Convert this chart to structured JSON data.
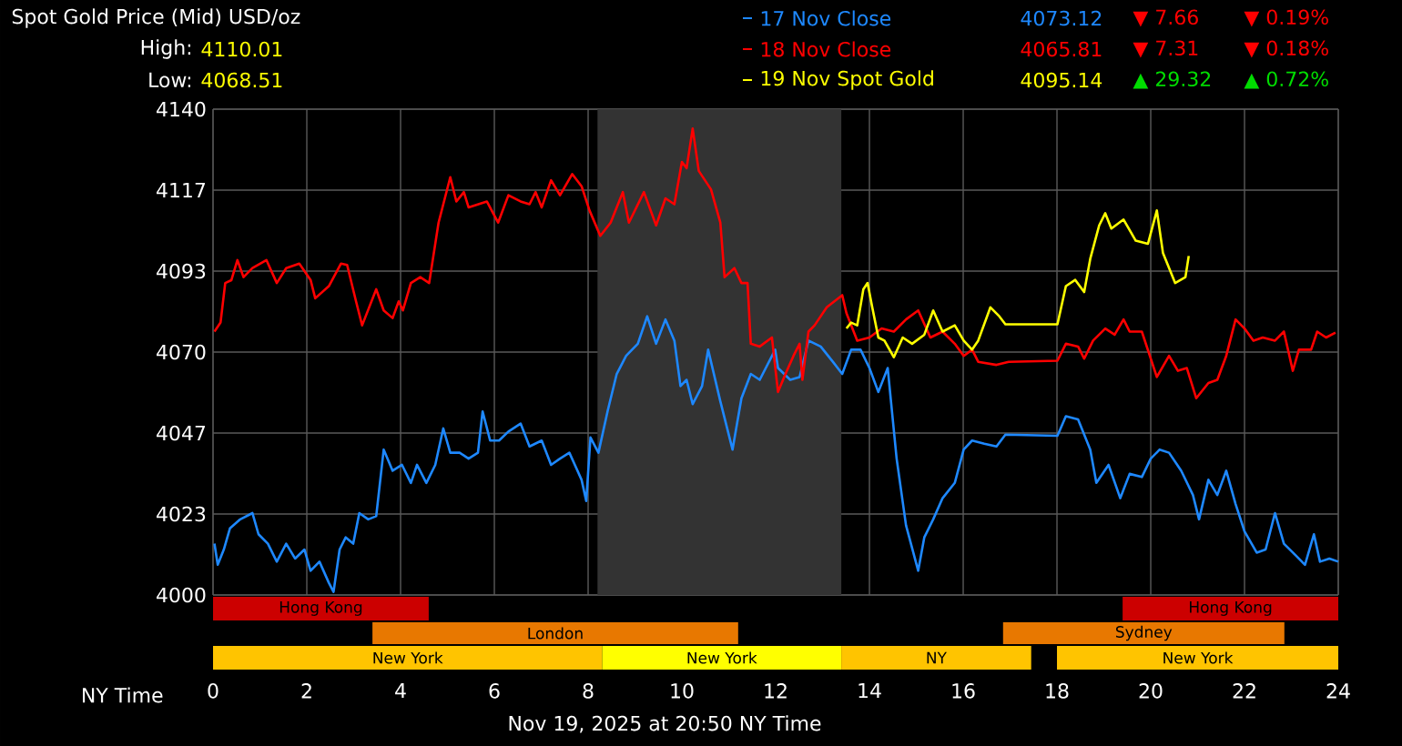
{
  "chart_data": [
    {
      "type": "line",
      "title": "Spot Gold Price (Mid) USD/oz",
      "xlim": [
        0,
        24
      ],
      "ylim": [
        4000,
        4140
      ],
      "xticks": [
        0,
        2,
        4,
        6,
        8,
        10,
        12,
        14,
        16,
        18,
        20,
        22,
        24
      ],
      "yticks": [
        {
          "value": 4000,
          "label": "4000"
        },
        {
          "value": 4023.33,
          "label": "4023"
        },
        {
          "value": 4046.67,
          "label": "4047"
        },
        {
          "value": 4070,
          "label": "4070"
        },
        {
          "value": 4093.33,
          "label": "4093"
        },
        {
          "value": 4116.67,
          "label": "4117"
        },
        {
          "value": 4140,
          "label": "4140"
        }
      ],
      "xlabel": "NY Time",
      "grid": true,
      "legend": "top right",
      "series": [
        {
          "name": "17 Nov Close",
          "color": "#1e88ff",
          "x": [
            0.03,
            0.1,
            0.23,
            0.36,
            0.58,
            0.84,
            0.97,
            1.17,
            1.36,
            1.56,
            1.75,
            1.95,
            2.08,
            2.27,
            2.47,
            2.57,
            2.7,
            2.83,
            2.99,
            3.12,
            3.31,
            3.48,
            3.64,
            3.83,
            4.03,
            4.22,
            4.35,
            4.55,
            4.74,
            4.91,
            5.06,
            5.26,
            5.45,
            5.65,
            5.75,
            5.91,
            6.1,
            6.3,
            6.56,
            6.75,
            7.01,
            7.21,
            7.4,
            7.6,
            7.86,
            7.96,
            8.05,
            8.22,
            8.42,
            8.61,
            8.81,
            9.06,
            9.26,
            9.45,
            9.65,
            9.84,
            9.97,
            10.1,
            10.23,
            10.43,
            10.56,
            10.82,
            11.08,
            11.27,
            11.47,
            11.66,
            11.99,
            12.05,
            12.31,
            12.51,
            12.7,
            12.96,
            13.22,
            13.42,
            13.61,
            13.81,
            14.0,
            14.19,
            14.39,
            14.58,
            14.78,
            15.04,
            15.17,
            15.36,
            15.56,
            15.82,
            16.01,
            16.19,
            16.45,
            16.71,
            16.9,
            18.01,
            18.19,
            18.45,
            18.71,
            18.84,
            19.1,
            19.35,
            19.55,
            19.81,
            20.0,
            20.19,
            20.39,
            20.65,
            20.9,
            21.03,
            21.23,
            21.42,
            21.61,
            21.81,
            22.0,
            22.26,
            22.45,
            22.65,
            22.84,
            23.1,
            23.29,
            23.48,
            23.61,
            23.81,
            24.0
          ],
          "values": [
            4014.8,
            4008.7,
            4013.1,
            4019.2,
            4021.8,
            4023.6,
            4017.5,
            4014.8,
            4009.6,
            4014.8,
            4010.5,
            4013.1,
            4007.0,
            4009.6,
            4003.5,
            4000.9,
            4013.1,
            4016.6,
            4014.8,
            4023.6,
            4021.8,
            4022.7,
            4041.9,
            4035.8,
            4037.5,
            4032.3,
            4037.5,
            4032.3,
            4037.5,
            4048.0,
            4041.0,
            4041.0,
            4039.3,
            4041.0,
            4052.9,
            4044.5,
            4044.5,
            4047.1,
            4049.4,
            4042.8,
            4044.5,
            4037.5,
            4039.3,
            4041.0,
            4033.2,
            4027.1,
            4045.4,
            4041.0,
            4053.2,
            4063.7,
            4068.9,
            4072.4,
            4080.3,
            4072.4,
            4079.4,
            4073.3,
            4060.2,
            4062.0,
            4055.0,
            4060.2,
            4070.7,
            4055.8,
            4041.9,
            4056.7,
            4063.7,
            4062.0,
            4070.7,
            4065.4,
            4062.0,
            4062.8,
            4073.3,
            4071.6,
            4067.2,
            4063.7,
            4070.7,
            4070.7,
            4065.4,
            4058.5,
            4065.4,
            4039.3,
            4020.1,
            4007.0,
            4016.6,
            4021.8,
            4027.9,
            4032.3,
            4041.9,
            4044.5,
            4043.6,
            4042.8,
            4046.2,
            4045.9,
            4051.5,
            4050.6,
            4041.9,
            4032.3,
            4037.5,
            4027.9,
            4034.9,
            4034.0,
            4039.3,
            4041.9,
            4041.0,
            4035.8,
            4028.8,
            4021.8,
            4033.2,
            4028.8,
            4035.8,
            4026.2,
            4018.3,
            4012.2,
            4013.1,
            4023.6,
            4014.8,
            4011.3,
            4008.7,
            4017.5,
            4009.6,
            4010.5,
            4009.6
          ]
        },
        {
          "name": "18 Nov Close",
          "color": "#ff0000",
          "x": [
            0.03,
            0.16,
            0.26,
            0.39,
            0.52,
            0.65,
            0.84,
            1.14,
            1.36,
            1.56,
            1.84,
            2.08,
            2.18,
            2.47,
            2.73,
            2.86,
            3.05,
            3.18,
            3.48,
            3.64,
            3.83,
            3.96,
            4.05,
            4.22,
            4.42,
            4.61,
            4.81,
            5.06,
            5.19,
            5.35,
            5.45,
            5.84,
            6.08,
            6.3,
            6.56,
            6.75,
            6.88,
            7.01,
            7.21,
            7.4,
            7.66,
            7.86,
            8.03,
            8.26,
            8.48,
            8.74,
            8.87,
            9.19,
            9.45,
            9.65,
            9.84,
            10.0,
            10.1,
            10.23,
            10.36,
            10.62,
            10.82,
            10.91,
            11.12,
            11.27,
            11.4,
            11.47,
            11.66,
            11.92,
            12.05,
            12.21,
            12.38,
            12.51,
            12.57,
            12.7,
            12.83,
            13.09,
            13.42,
            13.51,
            13.74,
            14.0,
            14.26,
            14.52,
            14.78,
            15.04,
            15.3,
            15.56,
            15.82,
            16.01,
            16.19,
            16.32,
            16.71,
            16.97,
            18.01,
            18.19,
            18.45,
            18.58,
            18.77,
            19.03,
            19.23,
            19.42,
            19.55,
            19.81,
            20.13,
            20.39,
            20.58,
            20.77,
            20.97,
            21.23,
            21.42,
            21.61,
            21.81,
            22.0,
            22.19,
            22.39,
            22.65,
            22.84,
            23.03,
            23.16,
            23.42,
            23.55,
            23.74,
            23.94
          ],
          "values": [
            4075.9,
            4078.5,
            4089.9,
            4090.7,
            4096.5,
            4091.6,
            4094.2,
            4096.5,
            4089.9,
            4094.2,
            4095.5,
            4090.8,
            4085.5,
            4089.0,
            4095.5,
            4095.1,
            4084.6,
            4077.7,
            4088.1,
            4082.0,
            4079.8,
            4084.6,
            4082.0,
            4089.9,
            4091.6,
            4089.9,
            4107.3,
            4120.4,
            4113.4,
            4116.1,
            4111.7,
            4113.4,
            4107.3,
            4115.2,
            4113.4,
            4112.6,
            4116.1,
            4111.7,
            4119.5,
            4115.2,
            4121.3,
            4117.8,
            4110.8,
            4103.5,
            4107.3,
            4116.1,
            4107.3,
            4116.1,
            4106.5,
            4114.3,
            4112.6,
            4124.8,
            4123.0,
            4134.4,
            4122.2,
            4116.9,
            4107.3,
            4091.6,
            4094.2,
            4089.9,
            4089.9,
            4072.4,
            4071.6,
            4074.2,
            4058.5,
            4063.7,
            4068.9,
            4072.4,
            4062.0,
            4075.9,
            4077.7,
            4082.9,
            4086.4,
            4081.2,
            4073.3,
            4074.2,
            4076.8,
            4075.9,
            4079.4,
            4082.0,
            4074.2,
            4075.9,
            4072.4,
            4068.9,
            4070.7,
            4067.2,
            4066.3,
            4067.2,
            4067.5,
            4072.4,
            4071.6,
            4068.1,
            4073.3,
            4076.8,
            4075.0,
            4079.4,
            4075.9,
            4075.9,
            4062.8,
            4068.9,
            4064.6,
            4065.4,
            4056.7,
            4061.1,
            4062.0,
            4068.9,
            4079.4,
            4076.8,
            4073.3,
            4074.2,
            4073.3,
            4075.9,
            4064.6,
            4070.7,
            4070.7,
            4075.9,
            4074.2,
            4075.6
          ]
        },
        {
          "name": "19 Nov Spot Gold",
          "color": "#ffff00",
          "x": [
            13.51,
            13.61,
            13.74,
            13.87,
            13.96,
            14.06,
            14.19,
            14.32,
            14.52,
            14.71,
            14.91,
            15.17,
            15.36,
            15.56,
            15.82,
            16.01,
            16.19,
            16.32,
            16.58,
            16.77,
            16.9,
            18.01,
            18.19,
            18.39,
            18.58,
            18.71,
            18.9,
            19.03,
            19.16,
            19.42,
            19.68,
            19.94,
            20.13,
            20.26,
            20.52,
            20.74,
            20.81
          ],
          "values": [
            4076.8,
            4078.5,
            4077.7,
            4088.1,
            4089.9,
            4082.9,
            4074.2,
            4073.3,
            4068.5,
            4074.2,
            4072.4,
            4075.0,
            4082.0,
            4075.9,
            4077.7,
            4073.3,
            4070.7,
            4073.3,
            4082.9,
            4080.3,
            4078.0,
            4078.0,
            4089.0,
            4090.8,
            4087.3,
            4096.9,
            4106.5,
            4110.0,
            4105.6,
            4108.2,
            4102.1,
            4101.2,
            4110.8,
            4098.6,
            4089.9,
            4091.6,
            4097.7
          ]
        }
      ],
      "bands": [
        {
          "axis": "x",
          "from": 8.2,
          "to": 13.4,
          "color": "#333333"
        }
      ],
      "annotations": [
        "High:",
        "4110.01",
        "Low:",
        "4068.51",
        "4073.12",
        "▼ 7.66",
        "▼ 0.19%",
        "4065.81",
        "▼ 7.31",
        "▼ 0.18%",
        "4095.14",
        "▲ 29.32",
        "▲ 0.72%",
        "Nov 19, 2025 at 20:50 NY Time"
      ]
    },
    {
      "type": "other",
      "annotations": [
        "Hong Kong",
        "Hong Kong",
        "London",
        "Sydney",
        "New York",
        "New York",
        "NY",
        "New York"
      ]
    }
  ]
}
